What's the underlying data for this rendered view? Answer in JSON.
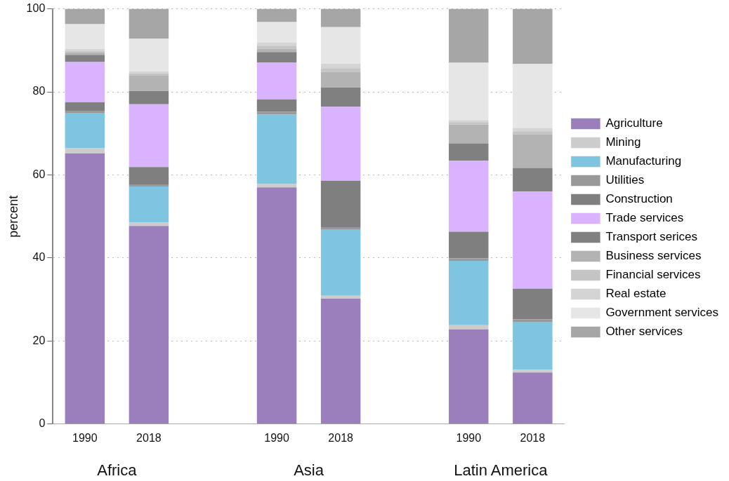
{
  "chart_data": {
    "type": "bar",
    "stacked": true,
    "ylabel": "percent",
    "categories": [
      "1990",
      "2018",
      null,
      "1990",
      "2018",
      null,
      "1990",
      "2018"
    ],
    "series": [
      {
        "name": "Agriculture",
        "color": "#9b7fbc",
        "values": [
          65.2,
          47.7,
          null,
          57.0,
          30.2,
          null,
          22.8,
          12.4
        ]
      },
      {
        "name": "Mining",
        "color": "#cccccc",
        "values": [
          1.2,
          0.8,
          null,
          0.8,
          0.7,
          null,
          1.0,
          0.7
        ]
      },
      {
        "name": "Manufacturing",
        "color": "#7fc4e0",
        "values": [
          8.4,
          8.7,
          null,
          16.7,
          15.9,
          null,
          15.5,
          11.4
        ]
      },
      {
        "name": "Utilities",
        "color": "#999999",
        "values": [
          0.5,
          0.5,
          null,
          0.7,
          0.6,
          null,
          0.6,
          0.7
        ]
      },
      {
        "name": "Construction",
        "color": "#7f7f7f",
        "values": [
          2.2,
          4.2,
          null,
          3.0,
          11.2,
          null,
          6.4,
          7.4
        ]
      },
      {
        "name": "Trade services",
        "color": "#d9b3ff",
        "values": [
          9.7,
          15.1,
          null,
          8.9,
          17.8,
          null,
          17.1,
          23.4
        ]
      },
      {
        "name": "Transport serices",
        "color": "#808080",
        "values": [
          1.7,
          3.2,
          null,
          2.5,
          4.6,
          null,
          4.2,
          5.7
        ]
      },
      {
        "name": "Business services",
        "color": "#b3b3b3",
        "values": [
          0.6,
          3.7,
          null,
          0.8,
          3.8,
          null,
          4.5,
          8.1
        ]
      },
      {
        "name": "Financial services",
        "color": "#c4c4c4",
        "values": [
          0.4,
          0.5,
          null,
          0.7,
          0.9,
          null,
          0.6,
          0.7
        ]
      },
      {
        "name": "Real estate",
        "color": "#d4d4d4",
        "values": [
          0.4,
          0.5,
          null,
          0.8,
          1.1,
          null,
          0.5,
          0.8
        ]
      },
      {
        "name": "Government services",
        "color": "#e6e6e6",
        "values": [
          6.0,
          7.9,
          null,
          4.9,
          8.8,
          null,
          13.8,
          15.4
        ]
      },
      {
        "name": "Other services",
        "color": "#a6a6a6",
        "values": [
          3.7,
          7.2,
          null,
          3.2,
          4.4,
          null,
          13.0,
          13.3
        ]
      }
    ],
    "ylim": [
      0,
      100
    ],
    "yticks": [
      0,
      20,
      40,
      60,
      80,
      100
    ],
    "grid": "y",
    "legend": "right",
    "annotations": [
      "Africa",
      "Asia",
      "Latin America"
    ]
  }
}
